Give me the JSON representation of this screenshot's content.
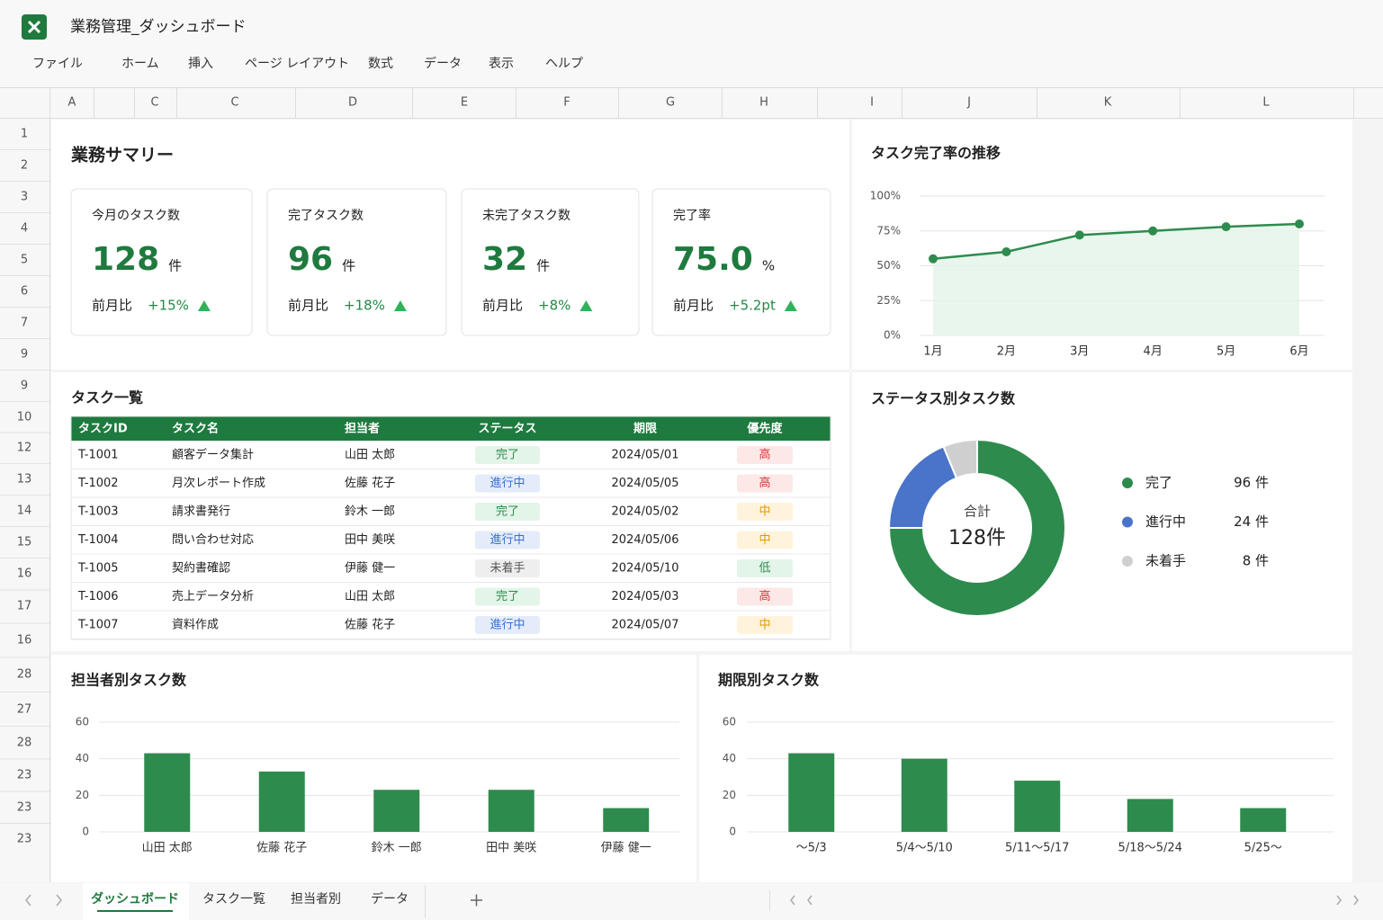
{
  "app": {
    "title": "業務管理_ダッシュボード",
    "menu": [
      "ファイル",
      "ホーム",
      "挿入",
      "ページ レイアウト",
      "数式",
      "データ",
      "表示",
      "ヘルプ"
    ]
  },
  "sheet": {
    "columns": [
      "A",
      "C",
      "C",
      "D",
      "E",
      "F",
      "G",
      "H",
      "I",
      "J",
      "K",
      "L"
    ],
    "rows": [
      "1",
      "2",
      "3",
      "4",
      "5",
      "6",
      "7",
      "9",
      "9",
      "10",
      "12",
      "13",
      "14",
      "15",
      "16",
      "17",
      "16",
      "28",
      "27",
      "28",
      "23",
      "23",
      "23"
    ]
  },
  "summary": {
    "title": "業務サマリー",
    "cards": [
      {
        "label": "今月のタスク数",
        "value": "128",
        "unit": "件",
        "compare": "前月比",
        "change": "+15%"
      },
      {
        "label": "完了タスク数",
        "value": "96",
        "unit": "件",
        "compare": "前月比",
        "change": "+18%"
      },
      {
        "label": "未完了タスク数",
        "value": "32",
        "unit": "件",
        "compare": "前月比",
        "change": "+8%"
      },
      {
        "label": "完了率",
        "value": "75.0",
        "unit": "%",
        "compare": "前月比",
        "change": "+5.2pt"
      }
    ]
  },
  "table": {
    "title": "タスク一覧",
    "headers": [
      "タスクID",
      "タスク名",
      "担当者",
      "ステータス",
      "期限",
      "優先度"
    ],
    "rows": [
      [
        "T-1001",
        "顧客データ集計",
        "山田 太郎",
        "完了",
        "2024/05/01",
        "高"
      ],
      [
        "T-1002",
        "月次レポート作成",
        "佐藤 花子",
        "進行中",
        "2024/05/05",
        "高"
      ],
      [
        "T-1003",
        "請求書発行",
        "鈴木 一郎",
        "完了",
        "2024/05/02",
        "中"
      ],
      [
        "T-1004",
        "問い合わせ対応",
        "田中 美咲",
        "進行中",
        "2024/05/06",
        "中"
      ],
      [
        "T-1005",
        "契約書確認",
        "伊藤 健一",
        "未着手",
        "2024/05/10",
        "低"
      ],
      [
        "T-1006",
        "売上データ分析",
        "山田 太郎",
        "完了",
        "2024/05/03",
        "高"
      ],
      [
        "T-1007",
        "資料作成",
        "佐藤 花子",
        "進行中",
        "2024/05/07",
        "中"
      ]
    ]
  },
  "chart_data": [
    {
      "type": "line",
      "title": "タスク完了率の推移",
      "categories": [
        "1月",
        "2月",
        "3月",
        "4月",
        "5月",
        "6月"
      ],
      "values": [
        55,
        60,
        72,
        75,
        78,
        80
      ],
      "color": "#2e8b4e",
      "ylim": [
        0,
        100
      ],
      "yticks": [
        {
          "value": 0,
          "label": "0%"
        },
        {
          "value": 25,
          "label": "25%"
        },
        {
          "value": 50,
          "label": "50%"
        },
        {
          "value": 75,
          "label": "75%"
        },
        {
          "value": 100,
          "label": "100%"
        }
      ],
      "grid": true
    },
    {
      "type": "pie",
      "title": "ステータス別タスク数",
      "categories": [
        "完了",
        "進行中",
        "未着手"
      ],
      "values": [
        96,
        24,
        8
      ],
      "value_labels": [
        "96 件",
        "24 件",
        "8 件"
      ],
      "colors": [
        "#2e8b4e",
        "#4a74c9",
        "#cfcfcf"
      ],
      "center_title": "合計",
      "center_value_label": "128件"
    },
    {
      "type": "bar",
      "title": "担当者別タスク数",
      "categories": [
        "山田 太郎",
        "佐藤 花子",
        "鈴木 一郎",
        "田中 美咲",
        "伊藤 健一"
      ],
      "values": [
        43,
        33,
        23,
        23,
        13
      ],
      "color": "#2e8b4e",
      "ylim": [
        0,
        60
      ],
      "yticks": [
        0,
        20,
        40,
        60
      ],
      "grid": true
    },
    {
      "type": "bar",
      "title": "期限別タスク数",
      "categories": [
        "〜5/3",
        "5/4〜5/10",
        "5/11〜5/17",
        "5/18〜5/24",
        "5/25〜"
      ],
      "values": [
        43,
        40,
        28,
        18,
        13
      ],
      "color": "#2e8b4e",
      "ylim": [
        0,
        60
      ],
      "yticks": [
        0,
        20,
        40,
        60
      ],
      "grid": true
    }
  ],
  "tabs": [
    "ダッシュボード",
    "タスク一覧",
    "担当者別",
    "データ"
  ]
}
